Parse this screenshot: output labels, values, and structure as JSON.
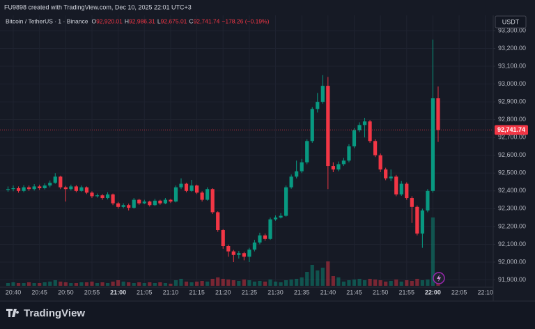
{
  "watermark": "FU9898 created with TradingView.com, Dec 10, 2025 22:01 UTC+3",
  "logo": "TradingView",
  "chart_data": {
    "type": "candlestick",
    "symbol": "Bitcoin / TetherUS · 1 · Binance",
    "ohlc_legend": [
      {
        "key": "O",
        "value": "92,920.01"
      },
      {
        "key": "H",
        "value": "92,986.31"
      },
      {
        "key": "L",
        "value": "92,675.01"
      },
      {
        "key": "C",
        "value": "92,741.74"
      }
    ],
    "change": "−178.26 (−0.19%)",
    "currency": "USDT",
    "up_color": "#089981",
    "down_color": "#f23645",
    "grid": true,
    "categories": [
      null,
      "20:40",
      null,
      null,
      null,
      null,
      "20:45",
      null,
      null,
      null,
      null,
      "20:50",
      null,
      null,
      null,
      null,
      "20:55",
      null,
      null,
      null,
      null,
      "21:00",
      null,
      null,
      null,
      null,
      "21:05",
      null,
      null,
      null,
      null,
      "21:10",
      null,
      null,
      null,
      null,
      "21:15",
      null,
      null,
      null,
      null,
      "21:20",
      null,
      null,
      null,
      null,
      "21:25",
      null,
      null,
      null,
      null,
      "21:30",
      null,
      null,
      null,
      null,
      "21:35",
      null,
      null,
      null,
      null,
      "21:40",
      null,
      null,
      null,
      null,
      "21:45",
      null,
      null,
      null,
      null,
      "21:50",
      null,
      null,
      null,
      null,
      "21:55",
      null,
      null,
      null,
      null,
      "22:00",
      null,
      null,
      null,
      null,
      "22:05",
      null,
      null,
      null,
      null,
      "22:10"
    ],
    "open": [
      92405,
      92410,
      92415,
      92400,
      92420,
      92410,
      92425,
      92415,
      92430,
      92445,
      92480,
      92420,
      92410,
      92425,
      92400,
      92420,
      92390,
      92370,
      92375,
      92360,
      92380,
      92330,
      92310,
      92320,
      92305,
      92350,
      92330,
      92340,
      92320,
      92345,
      92330,
      92350,
      92340,
      92420,
      92440,
      92400,
      92430,
      92390,
      92350,
      92410,
      92280,
      92180,
      92090,
      92060,
      92040,
      92050,
      92030,
      92070,
      92110,
      92150,
      92130,
      92240,
      92250,
      92260,
      92420,
      92480,
      92510,
      92560,
      92680,
      92860,
      92900,
      92990,
      92540,
      92520,
      92550,
      92570,
      92650,
      92740,
      92770,
      92790,
      92680,
      92600,
      92520,
      92470,
      92480,
      92380,
      92440,
      92360,
      92310,
      92160,
      92290,
      92400,
      92920.01,
      null,
      null,
      null,
      null,
      null,
      null,
      null,
      null,
      null
    ],
    "high": [
      92425,
      92430,
      92425,
      92432,
      92430,
      92438,
      92435,
      92442,
      92458,
      92500,
      92485,
      92428,
      92435,
      92432,
      92430,
      92425,
      92398,
      92385,
      92382,
      92392,
      92385,
      92338,
      92330,
      92328,
      92360,
      92355,
      92350,
      92345,
      92355,
      92350,
      92360,
      92355,
      92430,
      92470,
      92445,
      92462,
      92435,
      92398,
      92420,
      92415,
      92285,
      92185,
      92098,
      92068,
      92062,
      92058,
      92080,
      92125,
      92165,
      92160,
      92250,
      92262,
      92275,
      92430,
      92492,
      92570,
      92580,
      92690,
      92870,
      92950,
      93050,
      93040,
      92560,
      92565,
      92585,
      92662,
      92752,
      92785,
      92810,
      92798,
      92690,
      92610,
      92530,
      92520,
      92490,
      92455,
      92448,
      92370,
      92318,
      92300,
      92410,
      93250,
      92986.31,
      null,
      null,
      null,
      null,
      null,
      null,
      null,
      null,
      null
    ],
    "low": [
      92395,
      92398,
      92390,
      92392,
      92400,
      92402,
      92405,
      92408,
      92420,
      92440,
      92410,
      92340,
      92402,
      92392,
      92395,
      92382,
      92360,
      92362,
      92350,
      92352,
      92320,
      92300,
      92302,
      92290,
      92300,
      92322,
      92325,
      92312,
      92315,
      92322,
      92325,
      92332,
      92335,
      92410,
      92392,
      92395,
      92382,
      92340,
      92345,
      92270,
      92170,
      92075,
      92030,
      92000,
      92020,
      92010,
      92000,
      92060,
      92100,
      92120,
      92125,
      92232,
      92245,
      92255,
      92412,
      92470,
      92500,
      92550,
      92670,
      92840,
      92890,
      92410,
      92505,
      92510,
      92540,
      92560,
      92640,
      92730,
      92700,
      92670,
      92590,
      92505,
      92460,
      92455,
      92370,
      92372,
      92350,
      92220,
      92150,
      92080,
      92280,
      92390,
      92675.01,
      null,
      null,
      null,
      null,
      null,
      null,
      null,
      null,
      null
    ],
    "close": [
      92410,
      92415,
      92400,
      92420,
      92410,
      92425,
      92415,
      92430,
      92445,
      92480,
      92420,
      92410,
      92425,
      92400,
      92420,
      92390,
      92370,
      92375,
      92360,
      92380,
      92330,
      92310,
      92320,
      92305,
      92350,
      92330,
      92340,
      92320,
      92345,
      92330,
      92350,
      92340,
      92420,
      92440,
      92400,
      92430,
      92390,
      92350,
      92410,
      92280,
      92180,
      92090,
      92060,
      92040,
      92050,
      92030,
      92070,
      92110,
      92150,
      92130,
      92240,
      92250,
      92260,
      92420,
      92480,
      92510,
      92560,
      92680,
      92860,
      92900,
      92990,
      92540,
      92520,
      92550,
      92570,
      92650,
      92740,
      92770,
      92790,
      92680,
      92600,
      92520,
      92470,
      92480,
      92380,
      92440,
      92360,
      92310,
      92160,
      92290,
      92400,
      92920.01,
      92741.74,
      null,
      null,
      null,
      null,
      null,
      null,
      null,
      null,
      null
    ],
    "volume": [
      4,
      5,
      4,
      4,
      5,
      4,
      4,
      5,
      6,
      8,
      6,
      5,
      4,
      4,
      5,
      5,
      6,
      4,
      5,
      4,
      6,
      8,
      6,
      5,
      4,
      5,
      4,
      5,
      4,
      5,
      4,
      3,
      8,
      10,
      6,
      5,
      6,
      7,
      6,
      10,
      12,
      10,
      9,
      8,
      7,
      9,
      8,
      6,
      7,
      6,
      9,
      6,
      5,
      8,
      9,
      10,
      12,
      20,
      30,
      22,
      26,
      35,
      14,
      12,
      6,
      8,
      9,
      10,
      8,
      10,
      9,
      8,
      6,
      7,
      9,
      6,
      8,
      7,
      10,
      8,
      9,
      98,
      5,
      null,
      null,
      null,
      null,
      null,
      null,
      null,
      null,
      null
    ],
    "price_line": {
      "value": 92741.74,
      "label": "92,741.74"
    },
    "ylim": [
      91859,
      93386
    ],
    "yticks": [
      {
        "value": 91900,
        "label": "91,900.00"
      },
      {
        "value": 92000,
        "label": "92,000.00"
      },
      {
        "value": 92100,
        "label": "92,100.00"
      },
      {
        "value": 92200,
        "label": "92,200.00"
      },
      {
        "value": 92300,
        "label": "92,300.00"
      },
      {
        "value": 92400,
        "label": "92,400.00"
      },
      {
        "value": 92500,
        "label": "92,500.00"
      },
      {
        "value": 92600,
        "label": "92,600.00"
      },
      {
        "value": 92700,
        "label": "92,700.00"
      },
      {
        "value": 92800,
        "label": "92,800.00"
      },
      {
        "value": 92900,
        "label": "92,900.00"
      },
      {
        "value": 93000,
        "label": "93,000.00"
      },
      {
        "value": 93100,
        "label": "93,100.00"
      },
      {
        "value": 93200,
        "label": "93,200.00"
      },
      {
        "value": 93300,
        "label": "93,300.00"
      }
    ]
  }
}
